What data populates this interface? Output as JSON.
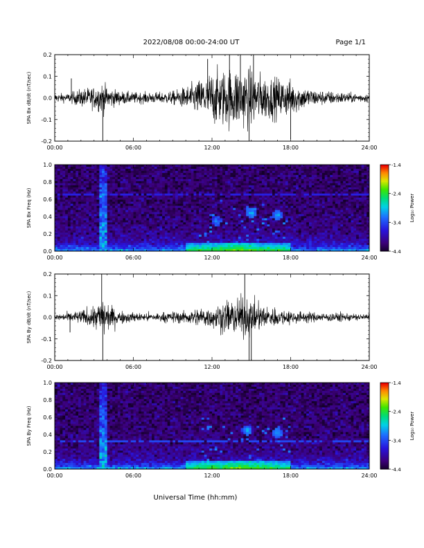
{
  "header": {
    "title": "2022/08/08  00:00-24:00 UT",
    "page": "Page 1/1"
  },
  "xlabel": "Universal Time (hh:mm)",
  "chart_data": [
    {
      "type": "line",
      "title": "",
      "ylabel": "SPA Bx dB/dt (nT/sec)",
      "xlabel": "",
      "xlim": [
        "00:00",
        "24:00"
      ],
      "x_ticks": [
        "00:00",
        "06:00",
        "12:00",
        "18:00",
        "24:00"
      ],
      "ylim": [
        -0.2,
        0.2
      ],
      "y_ticks": [
        "0.2",
        "0.1",
        "0.0",
        "-0.1",
        "-0.2"
      ],
      "series": [
        {
          "color": "#000000",
          "envelope_hours": [
            0,
            1,
            2,
            3,
            3.7,
            4,
            5,
            6,
            7,
            8,
            9,
            10,
            11,
            12,
            13,
            14,
            15,
            16,
            17,
            18,
            19,
            20,
            21,
            22,
            23,
            24
          ],
          "amplitude_nT_per_s": [
            0.02,
            0.02,
            0.04,
            0.05,
            0.07,
            0.05,
            0.03,
            0.025,
            0.025,
            0.025,
            0.03,
            0.05,
            0.08,
            0.12,
            0.13,
            0.14,
            0.13,
            0.1,
            0.09,
            0.08,
            0.05,
            0.035,
            0.03,
            0.025,
            0.02,
            0.02
          ],
          "spikes": [
            {
              "t": "01:16",
              "v": 0.09
            },
            {
              "t": "03:40",
              "v": -0.2
            },
            {
              "t": "11:40",
              "v": 0.18
            },
            {
              "t": "13:20",
              "v": 0.2
            },
            {
              "t": "14:10",
              "v": 0.2
            },
            {
              "t": "14:50",
              "v": -0.2
            },
            {
              "t": "15:10",
              "v": 0.2
            },
            {
              "t": "18:00",
              "v": -0.19
            }
          ]
        }
      ]
    },
    {
      "type": "heatmap",
      "title": "",
      "ylabel": "SPA Bx Freq (Hz)",
      "xlabel": "",
      "xlim": [
        "00:00",
        "24:00"
      ],
      "x_ticks": [
        "00:00",
        "06:00",
        "12:00",
        "18:00",
        "24:00"
      ],
      "ylim": [
        0.0,
        1.0
      ],
      "y_ticks": [
        "1.0",
        "0.8",
        "0.6",
        "0.4",
        "0.2",
        "0.0"
      ],
      "colorbar": {
        "label": "Log₁₀ Power",
        "range": [
          -4.4,
          -1.4
        ],
        "ticks": [
          "-1.4",
          "-2.4",
          "-3.4",
          "-4.4"
        ]
      },
      "features": [
        {
          "kind": "vertical-band",
          "t": "03:40",
          "f_max": 1.0,
          "level": -3.0
        },
        {
          "kind": "horizontal-line",
          "f": 0.65,
          "level": -3.6
        },
        {
          "kind": "blob",
          "t": "15:00",
          "f": 0.45,
          "level": -3.0
        },
        {
          "kind": "blob",
          "t": "17:00",
          "f": 0.42,
          "level": -3.0
        },
        {
          "kind": "blob",
          "t": "12:20",
          "f": 0.35,
          "level": -3.2
        },
        {
          "kind": "low-frequency-enhancement",
          "t_range": [
            "10:00",
            "18:00"
          ],
          "f_max": 0.1,
          "level": -2.4
        }
      ]
    },
    {
      "type": "line",
      "title": "",
      "ylabel": "SPA By dB/dt (nT/sec)",
      "xlabel": "",
      "xlim": [
        "00:00",
        "24:00"
      ],
      "x_ticks": [
        "00:00",
        "06:00",
        "12:00",
        "18:00",
        "24:00"
      ],
      "ylim": [
        -0.2,
        0.2
      ],
      "y_ticks": [
        "0.2",
        "0.1",
        "0.0",
        "-0.1",
        "-0.2"
      ],
      "series": [
        {
          "color": "#000000",
          "envelope_hours": [
            0,
            1,
            2,
            3,
            3.7,
            4,
            5,
            6,
            7,
            8,
            9,
            10,
            11,
            12,
            13,
            14,
            15,
            16,
            17,
            18,
            19,
            20,
            21,
            22,
            23,
            24
          ],
          "amplitude_nT_per_s": [
            0.015,
            0.02,
            0.03,
            0.05,
            0.09,
            0.06,
            0.03,
            0.02,
            0.02,
            0.02,
            0.025,
            0.03,
            0.04,
            0.05,
            0.07,
            0.09,
            0.08,
            0.05,
            0.04,
            0.03,
            0.025,
            0.02,
            0.02,
            0.02,
            0.015,
            0.015
          ],
          "spikes": [
            {
              "t": "01:10",
              "v": -0.07
            },
            {
              "t": "03:40",
              "v": -0.2
            },
            {
              "t": "03:35",
              "v": 0.2
            },
            {
              "t": "14:30",
              "v": 0.2
            },
            {
              "t": "14:50",
              "v": -0.2
            },
            {
              "t": "15:00",
              "v": -0.2
            }
          ]
        }
      ]
    },
    {
      "type": "heatmap",
      "title": "",
      "ylabel": "SPA By Freq (Hz)",
      "xlabel": "",
      "xlim": [
        "00:00",
        "24:00"
      ],
      "x_ticks": [
        "00:00",
        "06:00",
        "12:00",
        "18:00",
        "24:00"
      ],
      "ylim": [
        0.0,
        1.0
      ],
      "y_ticks": [
        "1.0",
        "0.8",
        "0.6",
        "0.4",
        "0.2",
        "0.0"
      ],
      "colorbar": {
        "label": "Log₁₀ Power",
        "range": [
          -4.4,
          -1.4
        ],
        "ticks": [
          "-1.4",
          "-2.4",
          "-3.4",
          "-4.4"
        ]
      },
      "features": [
        {
          "kind": "vertical-band",
          "t": "03:40",
          "f_max": 1.0,
          "level": -3.0
        },
        {
          "kind": "horizontal-line",
          "f": 0.32,
          "level": -3.4
        },
        {
          "kind": "blob",
          "t": "14:40",
          "f": 0.45,
          "level": -3.0
        },
        {
          "kind": "blob",
          "t": "17:00",
          "f": 0.42,
          "level": -3.0
        },
        {
          "kind": "low-frequency-enhancement",
          "t_range": [
            "10:00",
            "18:00"
          ],
          "f_max": 0.1,
          "level": -2.4
        }
      ]
    }
  ]
}
